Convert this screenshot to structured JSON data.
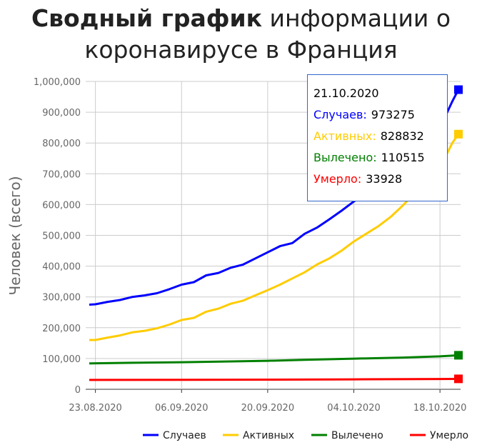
{
  "header": {
    "title_bold": "Сводный график",
    "title_rest": " информации о",
    "title_line2": "коронавирусе в Франция"
  },
  "tooltip": {
    "date": "21.10.2020",
    "rows": [
      {
        "label": "Случаев:",
        "value": "973275",
        "color": "#0000ff"
      },
      {
        "label": "Активных:",
        "value": "828832",
        "color": "#ffcc00"
      },
      {
        "label": "Вылечено:",
        "value": "110515",
        "color": "#008000"
      },
      {
        "label": "Умерло:",
        "value": "33928",
        "color": "#ff0000"
      }
    ]
  },
  "chart_data": {
    "type": "line",
    "title": "Сводный график информации о коронавирусе в Франция",
    "ylabel": "Человек (всего)",
    "xlabel": "",
    "ylim": [
      0,
      1000000
    ],
    "y_ticks": [
      0,
      100000,
      200000,
      300000,
      400000,
      500000,
      600000,
      700000,
      800000,
      900000,
      1000000
    ],
    "y_tick_labels": [
      "0",
      "100,000",
      "200,000",
      "300,000",
      "400,000",
      "500,000",
      "600,000",
      "700,000",
      "800,000",
      "900,000",
      "1,000,000"
    ],
    "x_ticks": [
      "23.08.2020",
      "06.09.2020",
      "20.09.2020",
      "04.10.2020",
      "18.10.2020"
    ],
    "x_start": "22.08.2020",
    "x_end": "21.10.2020",
    "grid": true,
    "legend_position": "bottom-right",
    "series": [
      {
        "name": "Случаев",
        "color": "#0000ff",
        "points": [
          [
            "22.08.2020",
            275000
          ],
          [
            "23.08.2020",
            276000
          ],
          [
            "25.08.2020",
            284000
          ],
          [
            "27.08.2020",
            290000
          ],
          [
            "29.08.2020",
            300000
          ],
          [
            "31.08.2020",
            305000
          ],
          [
            "02.09.2020",
            312000
          ],
          [
            "04.09.2020",
            325000
          ],
          [
            "06.09.2020",
            340000
          ],
          [
            "08.09.2020",
            348000
          ],
          [
            "10.09.2020",
            370000
          ],
          [
            "12.09.2020",
            378000
          ],
          [
            "14.09.2020",
            395000
          ],
          [
            "16.09.2020",
            405000
          ],
          [
            "18.09.2020",
            425000
          ],
          [
            "20.09.2020",
            445000
          ],
          [
            "22.09.2020",
            465000
          ],
          [
            "24.09.2020",
            475000
          ],
          [
            "26.09.2020",
            505000
          ],
          [
            "28.09.2020",
            525000
          ],
          [
            "30.09.2020",
            552000
          ],
          [
            "02.10.2020",
            580000
          ],
          [
            "04.10.2020",
            610000
          ],
          [
            "06.10.2020",
            635000
          ],
          [
            "08.10.2020",
            660000
          ],
          [
            "10.10.2020",
            690000
          ],
          [
            "12.10.2020",
            730000
          ],
          [
            "14.10.2020",
            775000
          ],
          [
            "16.10.2020",
            810000
          ],
          [
            "18.10.2020",
            850000
          ],
          [
            "20.10.2020",
            935000
          ],
          [
            "21.10.2020",
            973275
          ]
        ]
      },
      {
        "name": "Активных",
        "color": "#ffcc00",
        "points": [
          [
            "22.08.2020",
            160000
          ],
          [
            "23.08.2020",
            160000
          ],
          [
            "25.08.2020",
            168000
          ],
          [
            "27.08.2020",
            175000
          ],
          [
            "29.08.2020",
            185000
          ],
          [
            "31.08.2020",
            190000
          ],
          [
            "02.09.2020",
            198000
          ],
          [
            "04.09.2020",
            210000
          ],
          [
            "06.09.2020",
            225000
          ],
          [
            "08.09.2020",
            232000
          ],
          [
            "10.09.2020",
            252000
          ],
          [
            "12.09.2020",
            262000
          ],
          [
            "14.09.2020",
            278000
          ],
          [
            "16.09.2020",
            288000
          ],
          [
            "18.09.2020",
            305000
          ],
          [
            "20.09.2020",
            322000
          ],
          [
            "22.09.2020",
            340000
          ],
          [
            "24.09.2020",
            360000
          ],
          [
            "26.09.2020",
            380000
          ],
          [
            "28.09.2020",
            405000
          ],
          [
            "30.09.2020",
            425000
          ],
          [
            "02.10.2020",
            450000
          ],
          [
            "04.10.2020",
            480000
          ],
          [
            "06.10.2020",
            505000
          ],
          [
            "08.10.2020",
            530000
          ],
          [
            "10.10.2020",
            560000
          ],
          [
            "12.10.2020",
            598000
          ],
          [
            "14.10.2020",
            640000
          ],
          [
            "16.10.2020",
            680000
          ],
          [
            "18.10.2020",
            720000
          ],
          [
            "20.10.2020",
            800000
          ],
          [
            "21.10.2020",
            828832
          ]
        ]
      },
      {
        "name": "Вылечено",
        "color": "#008000",
        "points": [
          [
            "22.08.2020",
            84000
          ],
          [
            "23.08.2020",
            84500
          ],
          [
            "29.08.2020",
            86000
          ],
          [
            "06.09.2020",
            88000
          ],
          [
            "14.09.2020",
            90500
          ],
          [
            "20.09.2020",
            92500
          ],
          [
            "26.09.2020",
            95500
          ],
          [
            "04.10.2020",
            99500
          ],
          [
            "12.10.2020",
            103000
          ],
          [
            "18.10.2020",
            107000
          ],
          [
            "21.10.2020",
            110515
          ]
        ]
      },
      {
        "name": "Умерло",
        "color": "#ff0000",
        "points": [
          [
            "22.08.2020",
            30500
          ],
          [
            "23.08.2020",
            30500
          ],
          [
            "06.09.2020",
            30800
          ],
          [
            "20.09.2020",
            31400
          ],
          [
            "04.10.2020",
            32300
          ],
          [
            "18.10.2020",
            33400
          ],
          [
            "21.10.2020",
            33928
          ]
        ]
      }
    ]
  }
}
